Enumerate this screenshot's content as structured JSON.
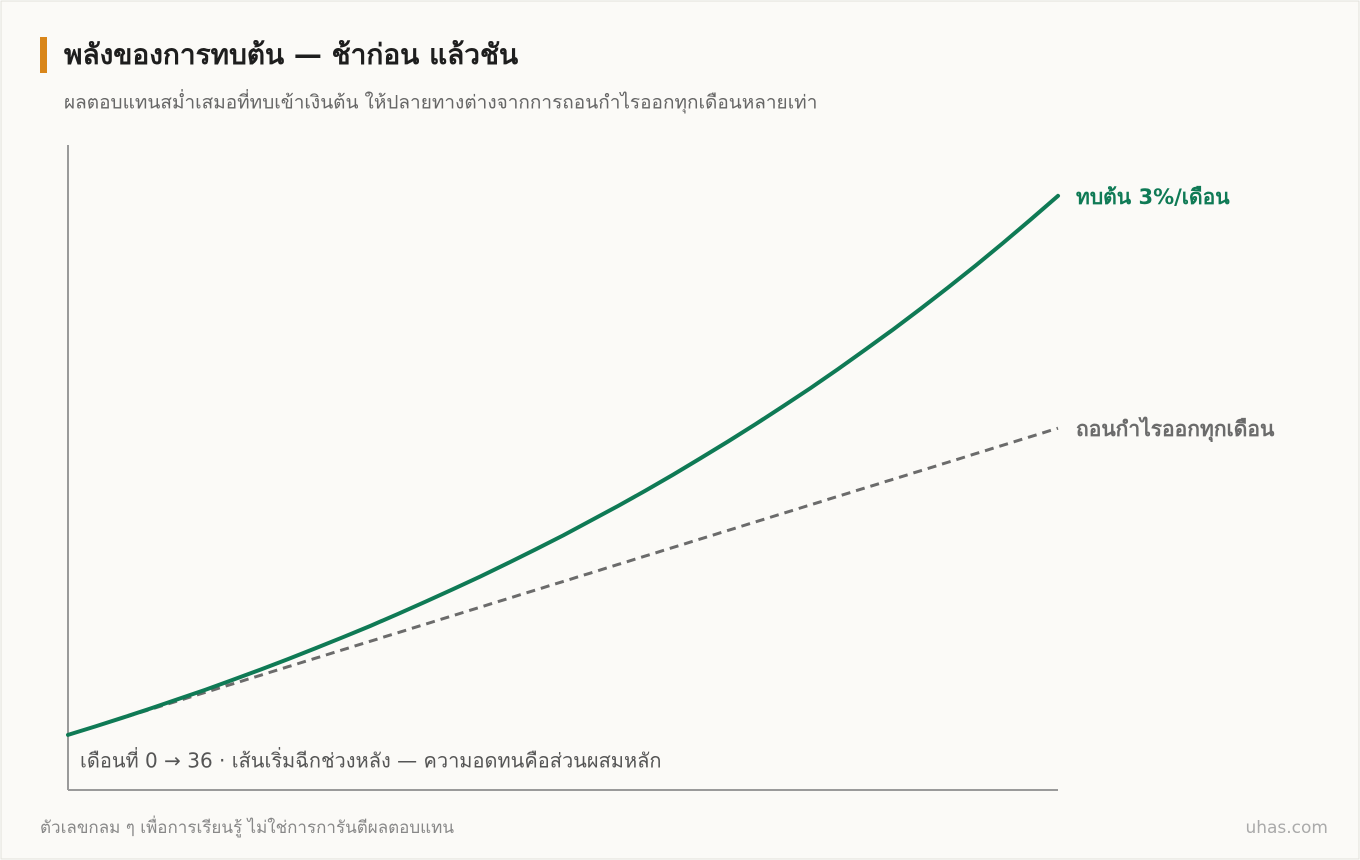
{
  "chart_data": {
    "type": "line",
    "title": "พลังของการทบต้น — ช้าก่อน แล้วชัน",
    "subtitle": "ผลตอบแทนสม่ำเสมอที่ทบเข้าเงินต้น ให้ปลายทางต่างจากการถอนกำไรออกทุกเดือนหลายเท่า",
    "annotation": "เดือนที่ 0 → 36 · เส้นเริ่มฉีกช่วงหลัง — ความอดทนคือส่วนผสมหลัก",
    "note": "ตัวเลขกลม ๆ เพื่อการเรียนรู้ ไม่ใช่การการันตีผลตอบแทน",
    "source": "uhas.com",
    "x": [
      0,
      1,
      2,
      3,
      4,
      5,
      6,
      7,
      8,
      9,
      10,
      11,
      12,
      13,
      14,
      15,
      16,
      17,
      18,
      19,
      20,
      21,
      22,
      23,
      24,
      25,
      26,
      27,
      28,
      29,
      30,
      31,
      32,
      33,
      34,
      35,
      36
    ],
    "xlim": [
      0,
      36
    ],
    "ylim": [
      80.6,
      307.7
    ],
    "series": [
      {
        "name": "ทบต้น 3%/เดือน",
        "color": "#0f7a55",
        "dashed": false,
        "values": [
          100,
          103,
          106.1,
          109.3,
          112.6,
          115.9,
          119.4,
          123,
          126.7,
          130.5,
          134.4,
          138.4,
          142.6,
          146.9,
          151.3,
          155.8,
          160.5,
          165.3,
          170.2,
          175.4,
          180.6,
          186,
          191.6,
          197.4,
          203.3,
          209.4,
          215.7,
          222.1,
          228.8,
          235.7,
          242.7,
          250,
          257.5,
          265.2,
          273.2,
          281.4,
          289.8
        ]
      },
      {
        "name": "ถอนกำไรออกทุกเดือน",
        "color": "#6b6b6b",
        "dashed": true,
        "values": [
          100,
          103,
          106,
          109,
          112,
          115,
          118,
          121,
          124,
          127,
          130,
          133,
          136,
          139,
          142,
          145,
          148,
          151,
          154,
          157,
          160,
          163,
          166,
          169,
          172,
          175,
          178,
          181,
          184,
          187,
          190,
          193,
          196,
          199,
          202,
          205,
          208
        ]
      }
    ]
  }
}
